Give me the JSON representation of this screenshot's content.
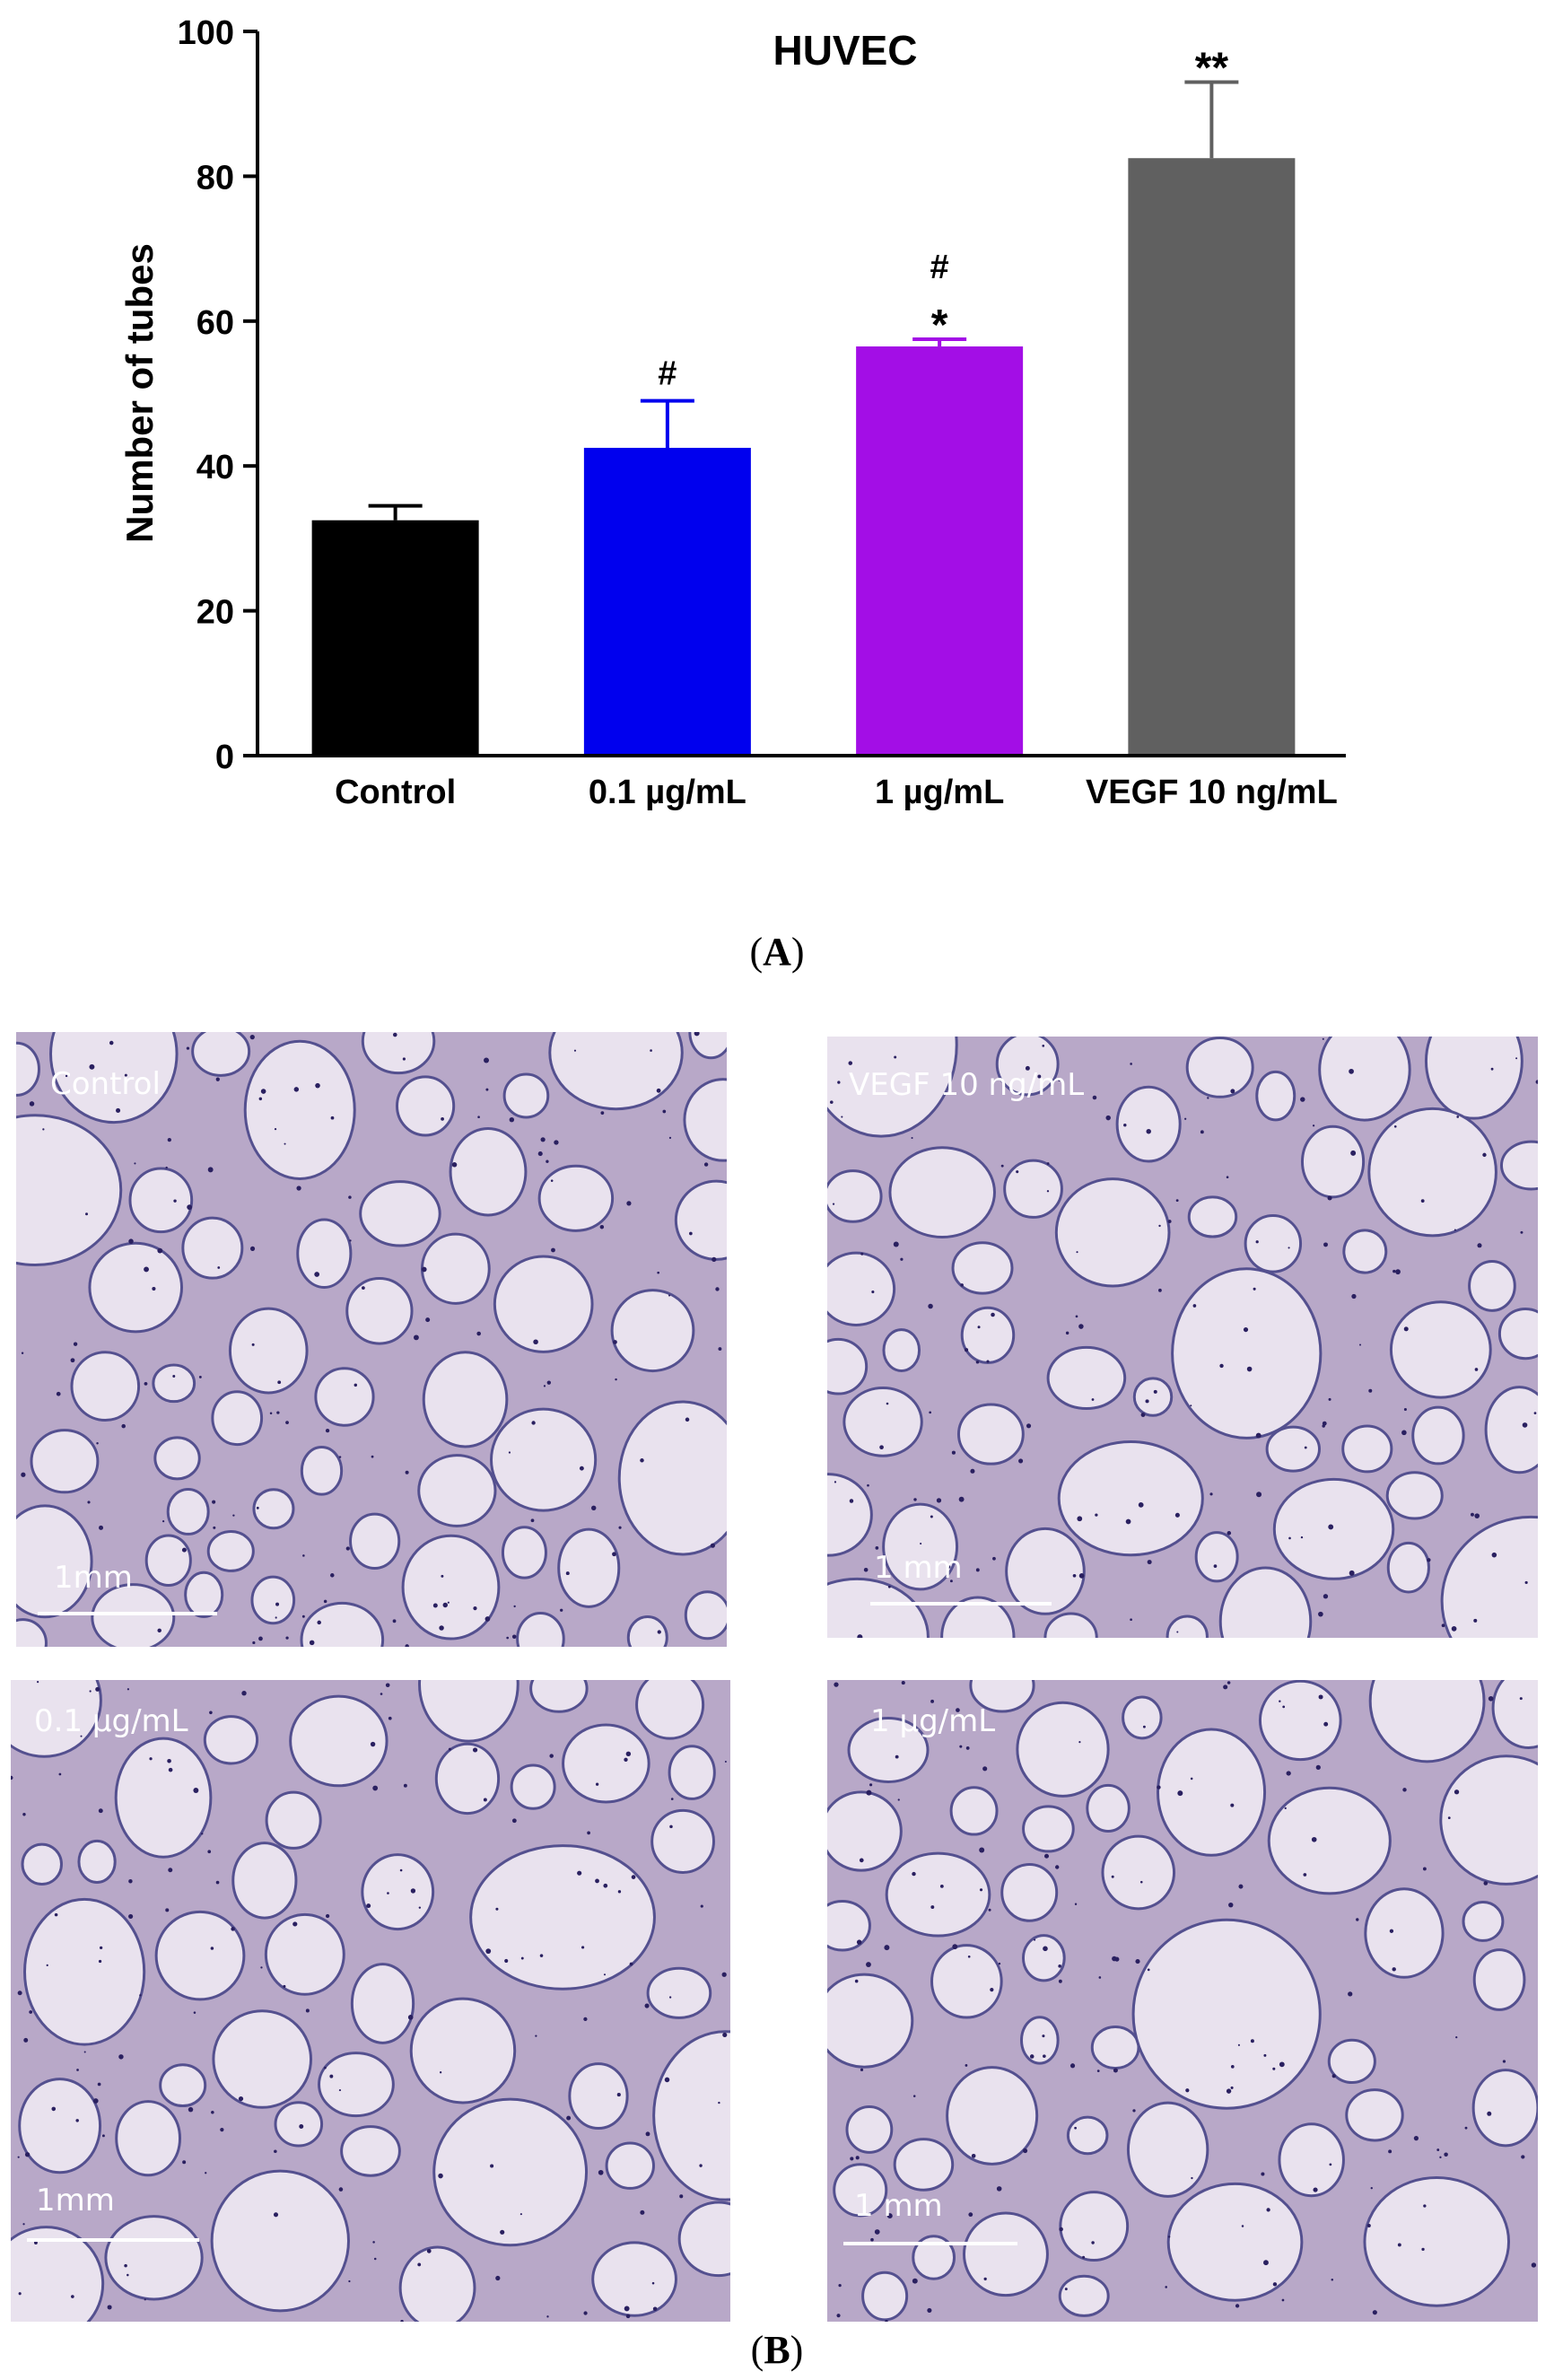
{
  "chart_data": {
    "type": "bar",
    "title": "HUVEC",
    "xlabel": "",
    "ylabel": "Number of tubes",
    "ylim": [
      0,
      100
    ],
    "yticks": [
      0,
      20,
      40,
      60,
      80,
      100
    ],
    "categories": [
      "Control",
      "0.1 µg/mL",
      "1 µg/mL",
      "VEGF 10 ng/mL"
    ],
    "values": [
      32.5,
      42.5,
      56.5,
      82.5
    ],
    "errors": [
      2,
      6.5,
      1,
      10.5
    ],
    "significance": [
      [],
      [
        "#"
      ],
      [
        "#",
        "*"
      ],
      [
        "**"
      ]
    ],
    "colors": [
      "#000000",
      "#0000ee",
      "#a30ee6",
      "#606060"
    ],
    "grid": false,
    "legend": "none"
  },
  "panel_labels": {
    "a": {
      "open": "(",
      "letter": "A",
      "close": ")"
    },
    "b": {
      "open": "(",
      "letter": "B",
      "close": ")"
    }
  },
  "micrographs": [
    {
      "id": "control",
      "caption": "Control",
      "scale_label": "1mm"
    },
    {
      "id": "vegf",
      "caption": "VEGF 10 ng/mL",
      "scale_label": "1 mm"
    },
    {
      "id": "low",
      "caption": "0.1 µg/mL",
      "scale_label": "1mm"
    },
    {
      "id": "high",
      "caption": "1 µg/mL",
      "scale_label": "1 mm"
    }
  ],
  "colors": {
    "micro_background": "#b8a8c8",
    "micro_cell": "#e9e2ee",
    "micro_membrane": "#54508f"
  }
}
